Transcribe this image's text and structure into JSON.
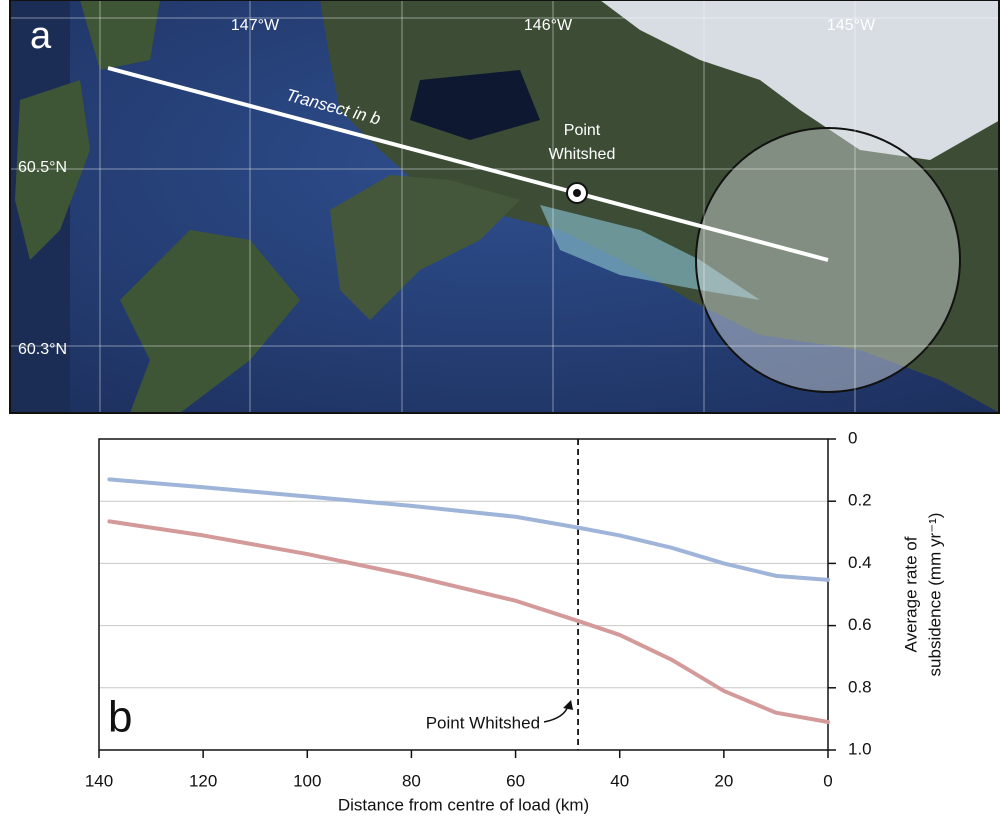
{
  "map": {
    "panel_label": "a",
    "lon_labels": [
      "147°W",
      "146°W",
      "145°W"
    ],
    "lat_labels": [
      "60.5°N",
      "60.3°N"
    ],
    "transect_label": "Transect in b",
    "point_label": [
      "Point",
      "Whitshed"
    ]
  },
  "chart_data": {
    "type": "line",
    "panel_label": "b",
    "x_label": "Distance from centre of load (km)",
    "y_label": [
      "Average rate of",
      "subsidence (mm yr⁻¹)"
    ],
    "x": [
      138,
      120,
      100,
      80,
      60,
      48,
      40,
      30,
      20,
      10,
      0
    ],
    "series": [
      {
        "color": "#9fb4d9",
        "values": [
          0.13,
          0.155,
          0.185,
          0.215,
          0.25,
          0.285,
          0.31,
          0.35,
          0.4,
          0.44,
          0.453
        ]
      },
      {
        "color": "#d49a9a",
        "values": [
          0.265,
          0.31,
          0.37,
          0.44,
          0.52,
          0.585,
          0.63,
          0.71,
          0.81,
          0.88,
          0.91
        ]
      }
    ],
    "xlim": [
      140,
      0
    ],
    "xticks": [
      140,
      120,
      100,
      80,
      60,
      40,
      20,
      0
    ],
    "ylim": [
      0,
      1
    ],
    "yticks": [
      0,
      0.2,
      0.4,
      0.6,
      0.8,
      {
        "value": 1,
        "label": "1.0"
      }
    ],
    "grid": true,
    "annotation": {
      "text": "Point Whitshed",
      "x": 48
    }
  }
}
